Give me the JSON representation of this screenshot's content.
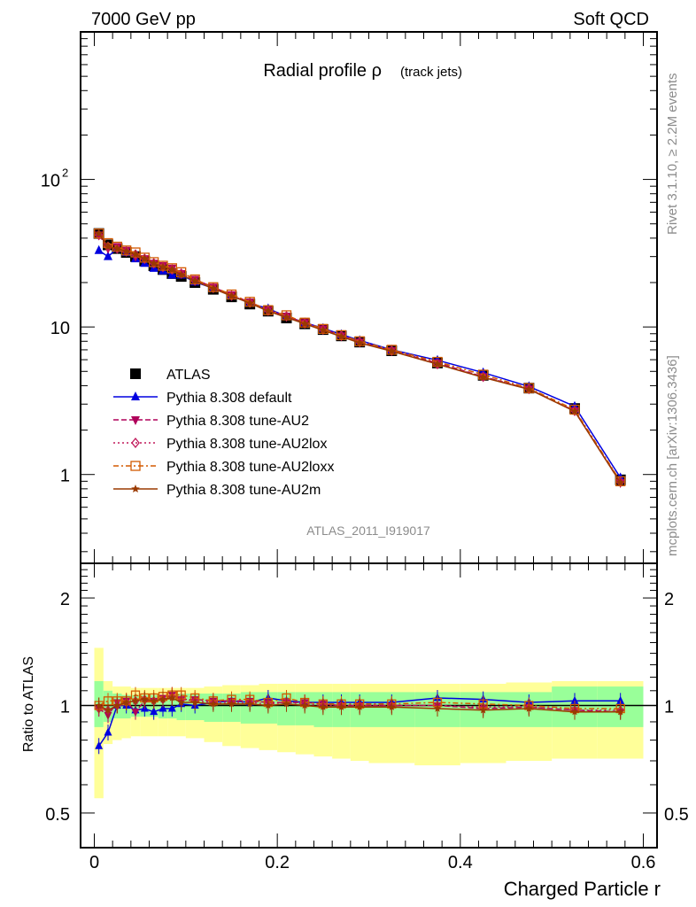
{
  "header": {
    "left": "7000 GeV pp",
    "right": "Soft QCD"
  },
  "side_text": {
    "rivet": "Rivet 3.1.10, ≥ 2.2M events",
    "mcplots": "mcplots.cern.ch [arXiv:1306.3436]"
  },
  "chart_data": [
    {
      "type": "line",
      "title": "Radial profile ρ",
      "title_suffix": "(track jets)",
      "analysis_label": "ATLAS_2011_I919017",
      "xlabel": "",
      "ylabel": "",
      "xlim": [
        -0.015,
        0.615
      ],
      "ylim": [
        0.25,
        1000
      ],
      "yscale": "log",
      "y_ticks": [
        {
          "value": 1,
          "label": "1"
        },
        {
          "value": 10,
          "label": "10"
        },
        {
          "value": 100,
          "label": "10",
          "sup": "2"
        }
      ],
      "legend_placement": "left-middle",
      "x": [
        0.005,
        0.015,
        0.025,
        0.035,
        0.045,
        0.055,
        0.065,
        0.075,
        0.085,
        0.095,
        0.11,
        0.13,
        0.15,
        0.17,
        0.19,
        0.21,
        0.23,
        0.25,
        0.27,
        0.29,
        0.325,
        0.375,
        0.425,
        0.475,
        0.525,
        0.575
      ],
      "series": [
        {
          "name": "ATLAS",
          "style": "data",
          "color": "#000000",
          "marker": "square",
          "values": [
            43,
            36,
            34,
            32,
            30,
            28,
            26,
            24.5,
            23,
            22,
            20,
            18,
            16,
            14.3,
            12.8,
            11.5,
            10.5,
            9.6,
            8.7,
            7.9,
            6.9,
            5.7,
            4.7,
            3.85,
            2.8,
            0.92
          ]
        },
        {
          "name": "Pythia 8.308 default",
          "color": "#0000e0",
          "dash": "",
          "marker": "triangle-up",
          "values": [
            33,
            30,
            34,
            32,
            29,
            27,
            25,
            24,
            22.5,
            22.5,
            20.2,
            18.3,
            16.3,
            14.5,
            13.3,
            11.8,
            10.7,
            9.8,
            8.9,
            8.1,
            7.0,
            5.95,
            4.9,
            3.95,
            2.9,
            0.95
          ]
        },
        {
          "name": "Pythia 8.308 tune-AU2",
          "color": "#b0005a",
          "dash": "6,3",
          "marker": "triangle-down",
          "values": [
            42,
            34,
            35,
            33,
            30,
            29,
            27,
            26,
            25,
            23,
            21,
            18.6,
            16.5,
            14.7,
            13,
            11.8,
            10.7,
            9.7,
            8.7,
            7.9,
            6.9,
            5.7,
            4.6,
            3.8,
            2.7,
            0.88
          ]
        },
        {
          "name": "Pythia 8.308 tune-AU2lox",
          "color": "#c0185a",
          "dash": "2,3",
          "marker": "diamond",
          "values": [
            42,
            35,
            34,
            32.5,
            31,
            29,
            27,
            25.5,
            24.5,
            23,
            20.6,
            18.4,
            16.3,
            14.6,
            12.9,
            11.8,
            10.6,
            9.6,
            8.7,
            7.9,
            6.9,
            5.6,
            4.6,
            3.8,
            2.7,
            0.89
          ]
        },
        {
          "name": "Pythia 8.308 tune-AU2loxx",
          "color": "#d35a00",
          "dash": "6,3,2,3",
          "marker": "square-open",
          "values": [
            43,
            37,
            35,
            33,
            32,
            29.5,
            27.5,
            26,
            25,
            23.5,
            21,
            18.6,
            16.6,
            14.8,
            13,
            12,
            10.7,
            9.7,
            8.8,
            8,
            7,
            5.8,
            4.75,
            3.85,
            2.75,
            0.9
          ]
        },
        {
          "name": "Pythia 8.308 tune-AU2m",
          "color": "#9a3a00",
          "dash": "",
          "marker": "star",
          "values": [
            43,
            35,
            34,
            32.5,
            31,
            29,
            27,
            25.5,
            24.5,
            22.5,
            20.5,
            18.2,
            16.2,
            14.5,
            12.8,
            11.6,
            10.5,
            9.5,
            8.6,
            7.8,
            6.85,
            5.6,
            4.55,
            3.78,
            2.68,
            0.88
          ]
        }
      ]
    },
    {
      "type": "line",
      "title": "",
      "xlabel": "Charged Particle r",
      "ylabel": "Ratio to ATLAS",
      "xlim": [
        -0.015,
        0.615
      ],
      "ylim": [
        0.4,
        2.5
      ],
      "yscale": "log",
      "x_ticks": [
        0,
        0.2,
        0.4,
        0.6
      ],
      "x_tick_labels": [
        "0",
        "0.2",
        "0.4",
        "0.6"
      ],
      "y_ticks": [
        {
          "value": 0.5,
          "label": "0.5"
        },
        {
          "value": 1,
          "label": "1"
        },
        {
          "value": 2,
          "label": "2"
        }
      ],
      "bin_edges": [
        0,
        0.01,
        0.02,
        0.03,
        0.04,
        0.05,
        0.06,
        0.07,
        0.08,
        0.09,
        0.1,
        0.12,
        0.14,
        0.16,
        0.18,
        0.2,
        0.22,
        0.24,
        0.26,
        0.28,
        0.3,
        0.35,
        0.4,
        0.45,
        0.5,
        0.55,
        0.6
      ],
      "band_inner_lo": [
        0.87,
        0.9,
        0.92,
        0.92,
        0.93,
        0.93,
        0.93,
        0.92,
        0.92,
        0.91,
        0.91,
        0.9,
        0.9,
        0.89,
        0.89,
        0.88,
        0.88,
        0.87,
        0.87,
        0.87,
        0.87,
        0.87,
        0.87,
        0.87,
        0.87,
        0.87
      ],
      "band_inner_hi": [
        1.17,
        1.1,
        1.08,
        1.07,
        1.07,
        1.07,
        1.07,
        1.07,
        1.07,
        1.08,
        1.08,
        1.08,
        1.08,
        1.09,
        1.09,
        1.09,
        1.09,
        1.09,
        1.09,
        1.09,
        1.09,
        1.09,
        1.09,
        1.09,
        1.13,
        1.13
      ],
      "band_outer_lo": [
        0.55,
        0.78,
        0.8,
        0.81,
        0.82,
        0.82,
        0.82,
        0.82,
        0.82,
        0.82,
        0.81,
        0.79,
        0.77,
        0.76,
        0.75,
        0.74,
        0.73,
        0.72,
        0.71,
        0.7,
        0.69,
        0.68,
        0.69,
        0.7,
        0.71,
        0.71
      ],
      "band_outer_hi": [
        1.45,
        1.17,
        1.13,
        1.13,
        1.12,
        1.12,
        1.12,
        1.12,
        1.12,
        1.12,
        1.12,
        1.13,
        1.14,
        1.14,
        1.15,
        1.15,
        1.15,
        1.15,
        1.15,
        1.15,
        1.15,
        1.15,
        1.15,
        1.16,
        1.17,
        1.17
      ],
      "series": [
        {
          "name": "Pythia 8.308 default",
          "color": "#0000e0",
          "dash": "",
          "marker": "triangle-up",
          "values": [
            0.77,
            0.84,
            1.0,
            1.0,
            0.97,
            0.98,
            0.96,
            0.98,
            0.98,
            1.01,
            1.0,
            1.02,
            1.03,
            1.02,
            1.05,
            1.03,
            1.02,
            1.02,
            1.02,
            1.02,
            1.02,
            1.05,
            1.04,
            1.02,
            1.03,
            1.03
          ]
        },
        {
          "name": "Pythia 8.308 tune-AU2",
          "color": "#b0005a",
          "dash": "6,3",
          "marker": "triangle-down",
          "values": [
            0.98,
            0.94,
            1.02,
            1.03,
            0.96,
            1.03,
            1.03,
            1.05,
            1.07,
            1.04,
            1.04,
            1.03,
            1.03,
            1.03,
            1.02,
            1.02,
            1.02,
            1.01,
            1.0,
            1.0,
            1.0,
            1.0,
            0.98,
            0.99,
            0.97,
            0.96
          ]
        },
        {
          "name": "Pythia 8.308 tune-AU2lox",
          "color": "#c0185a",
          "dash": "2,3",
          "marker": "diamond",
          "values": [
            0.98,
            0.97,
            1.0,
            1.02,
            1.03,
            1.04,
            1.03,
            1.04,
            1.06,
            1.04,
            1.03,
            1.02,
            1.02,
            1.02,
            1.01,
            1.02,
            1.01,
            1.0,
            1.0,
            1.0,
            1.0,
            1.0,
            0.99,
            0.99,
            0.97,
            0.97
          ]
        },
        {
          "name": "Pythia 8.308 tune-AU2loxx",
          "color": "#d35a00",
          "dash": "6,3,2,3",
          "marker": "square-open",
          "values": [
            1.0,
            1.03,
            1.03,
            1.03,
            1.07,
            1.05,
            1.05,
            1.06,
            1.07,
            1.07,
            1.05,
            1.03,
            1.04,
            1.04,
            1.02,
            1.05,
            1.02,
            1.01,
            1.01,
            1.01,
            1.01,
            1.02,
            1.01,
            1.0,
            0.98,
            0.98
          ]
        },
        {
          "name": "Pythia 8.308 tune-AU2m",
          "color": "#9a3a00",
          "dash": "",
          "marker": "star",
          "values": [
            1.0,
            0.97,
            1.0,
            1.02,
            1.03,
            1.04,
            1.03,
            1.04,
            1.05,
            1.02,
            1.02,
            1.01,
            1.01,
            1.01,
            1.0,
            1.01,
            1.0,
            0.99,
            0.99,
            0.99,
            0.99,
            0.98,
            0.97,
            0.98,
            0.96,
            0.96
          ]
        }
      ]
    }
  ]
}
